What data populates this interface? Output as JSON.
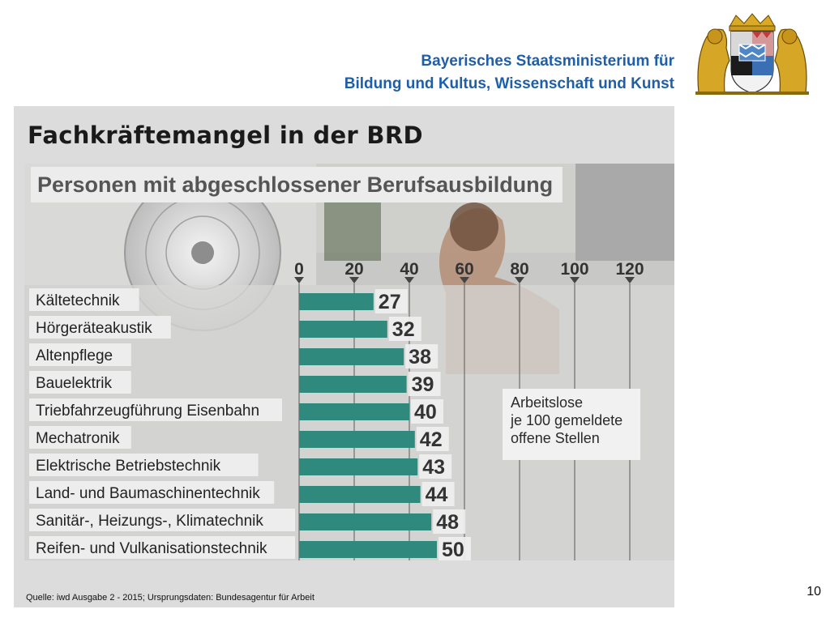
{
  "header": {
    "ministry_line1": "Bayerisches Staatsministerium für",
    "ministry_line2": "Bildung und Kultus, Wissenschaft und Kunst"
  },
  "slide": {
    "title": "Fachkräftemangel in der BRD",
    "page_number": "10",
    "source": "Quelle: iwd Ausgabe 2 - 2015; Ursprungsdaten: Bundesagentur für Arbeit"
  },
  "colors": {
    "ministry_blue": "#1f5fa8",
    "bar": "#2f8a7d",
    "panel": "#dcdcdc"
  },
  "chart_data": {
    "type": "bar",
    "orientation": "horizontal",
    "title": "Personen mit abgeschlossener Berufsausbildung",
    "legend": [
      "Arbeitslose",
      "je 100 gemeldete",
      "offene Stellen"
    ],
    "categories": [
      "Kältetechnik",
      "Hörgeräteakustik",
      "Altenpflege",
      "Bauelektrik",
      "Triebfahrzeugführung Eisenbahn",
      "Mechatronik",
      "Elektrische Betriebstechnik",
      "Land- und Baumaschinentechnik",
      "Sanitär-, Heizungs-, Klimatechnik",
      "Reifen- und Vulkanisationstechnik"
    ],
    "values": [
      27,
      32,
      38,
      39,
      40,
      42,
      43,
      44,
      48,
      50
    ],
    "ticks": [
      0,
      20,
      40,
      60,
      80,
      100,
      120
    ],
    "xlim": [
      0,
      120
    ],
    "grid": true
  }
}
